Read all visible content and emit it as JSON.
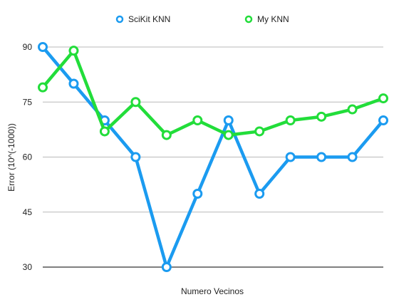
{
  "chart_data": {
    "type": "line",
    "xlabel": "Numero Vecinos",
    "ylabel": "Error (10^(-1000))",
    "ylim": [
      30,
      90
    ],
    "yticks": [
      30,
      45,
      60,
      75,
      90
    ],
    "grid": true,
    "legend_position": "top",
    "x": [
      1,
      2,
      3,
      4,
      5,
      6,
      7,
      8,
      9,
      10,
      11,
      12
    ],
    "series": [
      {
        "name": "SciKit KNN",
        "color": "#1b9bf0",
        "values": [
          90,
          80,
          70,
          60,
          30,
          50,
          70,
          50,
          60,
          60,
          60,
          70
        ]
      },
      {
        "name": "My KNN",
        "color": "#22dd3a",
        "values": [
          79,
          89,
          67,
          75,
          66,
          70,
          66,
          67,
          70,
          71,
          73,
          76
        ]
      }
    ]
  }
}
